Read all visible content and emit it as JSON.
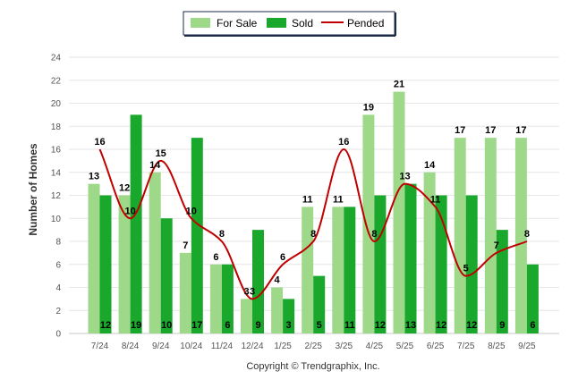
{
  "chart_data": {
    "type": "bar",
    "ylabel": "Number of Homes",
    "xlabel": "",
    "ylim": [
      0,
      24
    ],
    "yticks": [
      0,
      2,
      4,
      6,
      8,
      10,
      12,
      14,
      16,
      18,
      20,
      22,
      24
    ],
    "grid": true,
    "legend_position": "top-center",
    "categories": [
      "7/24",
      "8/24",
      "9/24",
      "10/24",
      "11/24",
      "12/24",
      "1/25",
      "2/25",
      "3/25",
      "4/25",
      "5/25",
      "6/25",
      "7/25",
      "8/25",
      "9/25"
    ],
    "series": [
      {
        "name": "For Sale",
        "kind": "bar",
        "color": "#9ed98a",
        "values": [
          13,
          12,
          14,
          7,
          6,
          3,
          4,
          11,
          11,
          19,
          21,
          14,
          17,
          17,
          17
        ]
      },
      {
        "name": "Sold",
        "kind": "bar",
        "color": "#1aa82c",
        "values": [
          12,
          19,
          10,
          17,
          6,
          9,
          3,
          5,
          11,
          12,
          13,
          12,
          12,
          9,
          6
        ]
      },
      {
        "name": "Pended",
        "kind": "line",
        "color": "#c00000",
        "values": [
          16,
          10,
          15,
          10,
          8,
          3,
          6,
          8,
          16,
          8,
          13,
          11,
          5,
          7,
          8
        ]
      }
    ],
    "credit": "Copyright © Trendgraphix, Inc."
  }
}
